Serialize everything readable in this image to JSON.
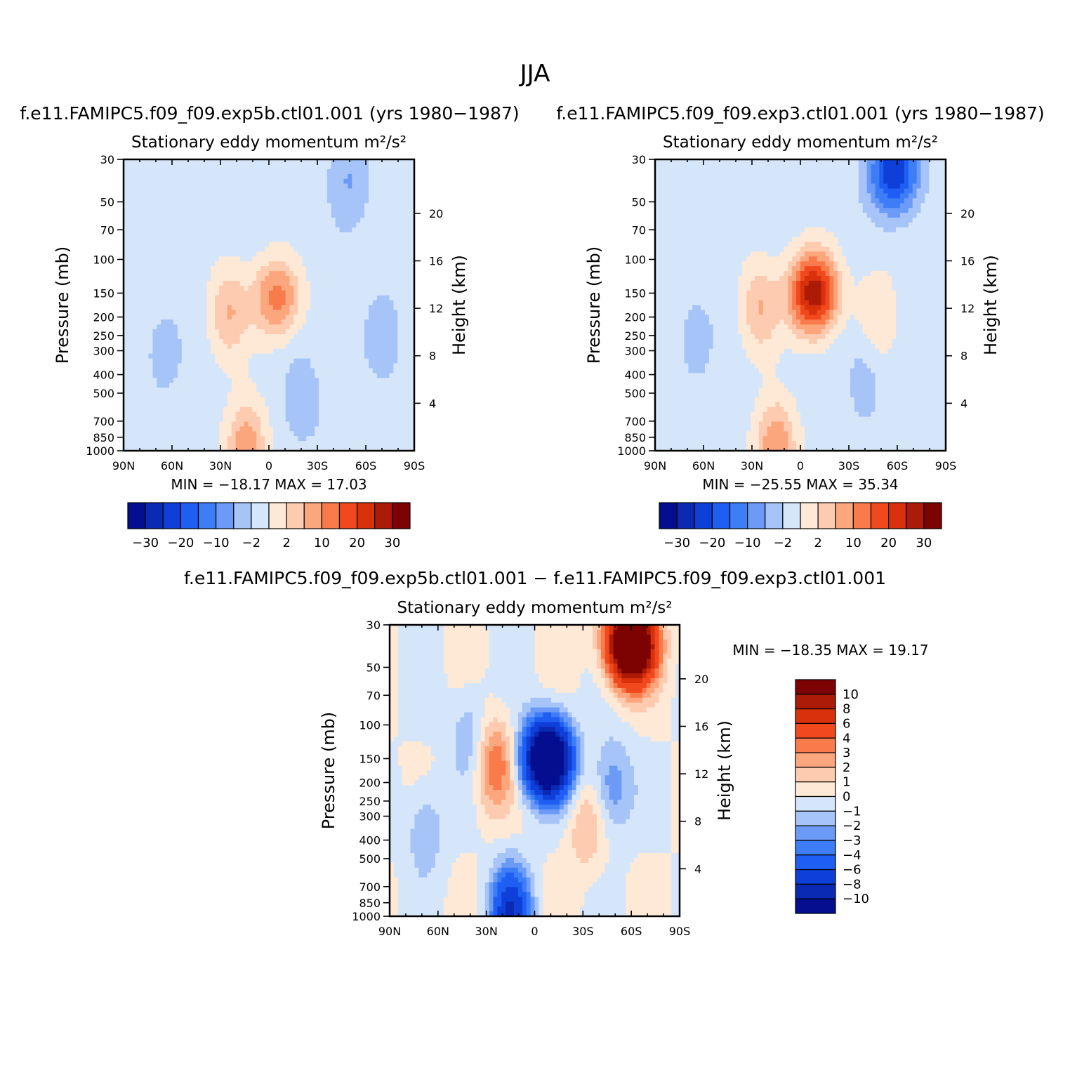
{
  "figure": {
    "title": "JJA",
    "colors": {
      "ramp_full": [
        "#040e8f",
        "#0a2ab4",
        "#0f3fd9",
        "#1f5ef2",
        "#3d7df6",
        "#6b9bf7",
        "#a7c4f8",
        "#d6e6fa",
        "#fde9d6",
        "#fdcbb0",
        "#fca67e",
        "#f97a4b",
        "#f1491d",
        "#d9310c",
        "#ac1b07",
        "#7d0303"
      ],
      "ramp_diff": [
        "#040e8f",
        "#0a2ab4",
        "#0f3fd9",
        "#1f5ef2",
        "#3d7df6",
        "#6b9bf7",
        "#a7c4f8",
        "#d6e6fa",
        "#fde9d6",
        "#fdcbb0",
        "#fca67e",
        "#f97a4b",
        "#f1491d",
        "#d9310c",
        "#ac1b07",
        "#7d0303"
      ]
    }
  },
  "panels": [
    {
      "case_title": "f.e11.FAMIPC5.f09_f09.exp5b.ctl01.001 (yrs 1980−1987)",
      "var_title": "Stationary eddy momentum",
      "units": "m²/s²",
      "ylabel": "Pressure (mb)",
      "ylabel_right": "Height (km)",
      "xticks": [
        "90N",
        "60N",
        "30N",
        "0",
        "30S",
        "60S",
        "90S"
      ],
      "yticks": [
        "30",
        "50",
        "70",
        "100",
        "150",
        "200",
        "250",
        "300",
        "400",
        "500",
        "700",
        "850",
        "1000"
      ],
      "yticks_right": [
        "20",
        "16",
        "12",
        "8",
        "4"
      ],
      "stats": "MIN = −18.17   MAX =   17.03",
      "colorbar_labels": [
        "−30",
        "−20",
        "−10",
        "−2",
        "2",
        "10",
        "20",
        "30"
      ]
    },
    {
      "case_title": "f.e11.FAMIPC5.f09_f09.exp3.ctl01.001 (yrs 1980−1987)",
      "var_title": "Stationary eddy momentum",
      "units": "m²/s²",
      "ylabel": "Pressure (mb)",
      "ylabel_right": "Height (km)",
      "xticks": [
        "90N",
        "60N",
        "30N",
        "0",
        "30S",
        "60S",
        "90S"
      ],
      "yticks": [
        "30",
        "50",
        "70",
        "100",
        "150",
        "200",
        "250",
        "300",
        "400",
        "500",
        "700",
        "850",
        "1000"
      ],
      "yticks_right": [
        "20",
        "16",
        "12",
        "8",
        "4"
      ],
      "stats": "MIN = −25.55   MAX =   35.34",
      "colorbar_labels": [
        "−30",
        "−20",
        "−10",
        "−2",
        "2",
        "10",
        "20",
        "30"
      ]
    },
    {
      "case_title": "f.e11.FAMIPC5.f09_f09.exp5b.ctl01.001 − f.e11.FAMIPC5.f09_f09.exp3.ctl01.001",
      "var_title": "Stationary eddy momentum",
      "units": "m²/s²",
      "ylabel": "Pressure (mb)",
      "ylabel_right": "Height (km)",
      "xticks": [
        "90N",
        "60N",
        "30N",
        "0",
        "30S",
        "60S",
        "90S"
      ],
      "yticks": [
        "30",
        "50",
        "70",
        "100",
        "150",
        "200",
        "250",
        "300",
        "400",
        "500",
        "700",
        "850",
        "1000"
      ],
      "yticks_right": [
        "20",
        "16",
        "12",
        "8",
        "4"
      ],
      "stats": "MIN = −18.35   MAX =   19.17",
      "colorbar_labels": [
        "10",
        "8",
        "6",
        "4",
        "3",
        "2",
        "1",
        "0",
        "−1",
        "−2",
        "−3",
        "−4",
        "−6",
        "−8",
        "−10"
      ]
    }
  ],
  "chart_data": [
    {
      "type": "contour",
      "title": "Stationary eddy momentum",
      "units": "m²/s²",
      "x": {
        "label": "",
        "ticks": [
          "90N",
          "60N",
          "30N",
          "0",
          "30S",
          "60S",
          "90S"
        ],
        "range": [
          90,
          -90
        ]
      },
      "y": {
        "label": "Pressure (mb)",
        "scale": "log",
        "range": [
          1000,
          30
        ],
        "ticks": [
          30,
          50,
          70,
          100,
          150,
          200,
          250,
          300,
          400,
          500,
          700,
          850,
          1000
        ]
      },
      "y2": {
        "label": "Height (km)",
        "ticks": [
          20,
          16,
          12,
          8,
          4
        ]
      },
      "levels": [
        -30,
        -25,
        -20,
        -15,
        -10,
        -6,
        -2,
        2,
        6,
        10,
        15,
        20,
        25,
        30
      ],
      "min": -18.17,
      "max": 17.03,
      "features": [
        {
          "lat": -5,
          "p": 160,
          "value": 17,
          "kind": "max"
        },
        {
          "lat": 25,
          "p": 190,
          "value": 10,
          "kind": "pos"
        },
        {
          "lat": 14,
          "p": 960,
          "value": 14,
          "kind": "pos"
        },
        {
          "lat": -50,
          "p": 38,
          "value": -6,
          "kind": "neg"
        },
        {
          "lat": 65,
          "p": 300,
          "value": -4,
          "kind": "neg"
        },
        {
          "lat": -20,
          "p": 550,
          "value": -5,
          "kind": "neg"
        },
        {
          "lat": -70,
          "p": 260,
          "value": -4,
          "kind": "neg"
        }
      ]
    },
    {
      "type": "contour",
      "title": "Stationary eddy momentum",
      "units": "m²/s²",
      "x": {
        "label": "",
        "ticks": [
          "90N",
          "60N",
          "30N",
          "0",
          "30S",
          "60S",
          "90S"
        ],
        "range": [
          90,
          -90
        ]
      },
      "y": {
        "label": "Pressure (mb)",
        "scale": "log",
        "range": [
          1000,
          30
        ],
        "ticks": [
          30,
          50,
          70,
          100,
          150,
          200,
          250,
          300,
          400,
          500,
          700,
          850,
          1000
        ]
      },
      "y2": {
        "label": "Height (km)",
        "ticks": [
          20,
          16,
          12,
          8,
          4
        ]
      },
      "levels": [
        -30,
        -25,
        -20,
        -15,
        -10,
        -6,
        -2,
        2,
        6,
        10,
        15,
        20,
        25,
        30
      ],
      "min": -25.55,
      "max": 35.34,
      "features": [
        {
          "lat": -8,
          "p": 150,
          "value": 35,
          "kind": "max"
        },
        {
          "lat": -58,
          "p": 35,
          "value": -25,
          "kind": "min"
        },
        {
          "lat": 25,
          "p": 180,
          "value": 10,
          "kind": "pos"
        },
        {
          "lat": 15,
          "p": 960,
          "value": 15,
          "kind": "pos"
        },
        {
          "lat": 65,
          "p": 260,
          "value": -4,
          "kind": "neg"
        },
        {
          "lat": -40,
          "p": 400,
          "value": -4,
          "kind": "neg"
        },
        {
          "lat": -48,
          "p": 200,
          "value": 6,
          "kind": "pos"
        }
      ]
    },
    {
      "type": "contour",
      "title": "Stationary eddy momentum",
      "units": "m²/s²",
      "x": {
        "label": "",
        "ticks": [
          "90N",
          "60N",
          "30N",
          "0",
          "30S",
          "60S",
          "90S"
        ],
        "range": [
          90,
          -90
        ]
      },
      "y": {
        "label": "Pressure (mb)",
        "scale": "log",
        "range": [
          1000,
          30
        ],
        "ticks": [
          30,
          50,
          70,
          100,
          150,
          200,
          250,
          300,
          400,
          500,
          700,
          850,
          1000
        ]
      },
      "y2": {
        "label": "Height (km)",
        "ticks": [
          20,
          16,
          12,
          8,
          4
        ]
      },
      "levels": [
        -10,
        -8,
        -6,
        -4,
        -3,
        -2,
        -1,
        0,
        1,
        2,
        3,
        4,
        6,
        8,
        10
      ],
      "min": -18.35,
      "max": 19.17,
      "features": [
        {
          "lat": -60,
          "p": 38,
          "value": 19,
          "kind": "max"
        },
        {
          "lat": -8,
          "p": 150,
          "value": -18,
          "kind": "min"
        },
        {
          "lat": 25,
          "p": 160,
          "value": 4,
          "kind": "pos"
        },
        {
          "lat": 15,
          "p": 970,
          "value": -8,
          "kind": "neg"
        },
        {
          "lat": -48,
          "p": 210,
          "value": -3,
          "kind": "neg"
        },
        {
          "lat": -32,
          "p": 340,
          "value": 2,
          "kind": "pos"
        },
        {
          "lat": 40,
          "p": 110,
          "value": -2,
          "kind": "neg"
        },
        {
          "lat": 68,
          "p": 350,
          "value": -2,
          "kind": "neg"
        }
      ]
    }
  ]
}
